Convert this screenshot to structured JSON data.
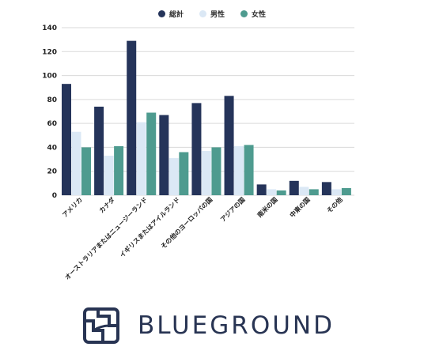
{
  "chart_data": {
    "type": "bar",
    "categories": [
      "アメリカ",
      "カナダ",
      "オーストラリアまたはニュージーランド",
      "イギリスまたはアイルランド",
      "その他のヨーロッパの国",
      "アジアの国",
      "南米の国",
      "中東の国",
      "その他"
    ],
    "series": [
      {
        "name": "総計",
        "color": "#25345a",
        "values": [
          93,
          74,
          129,
          67,
          77,
          83,
          9,
          12,
          11
        ]
      },
      {
        "name": "男性",
        "color": "#dbe8f5",
        "values": [
          53,
          33,
          61,
          31,
          37,
          41,
          5,
          7,
          5
        ]
      },
      {
        "name": "女性",
        "color": "#4e9b8f",
        "values": [
          40,
          41,
          69,
          36,
          40,
          42,
          4,
          5,
          6
        ]
      }
    ],
    "yticks": [
      0,
      20,
      40,
      60,
      80,
      100,
      120,
      140
    ],
    "ylim": [
      0,
      140
    ],
    "grid": true,
    "legend_position": "top-center"
  },
  "logo": {
    "text": "BLUEGROUND",
    "color": "#283453"
  }
}
